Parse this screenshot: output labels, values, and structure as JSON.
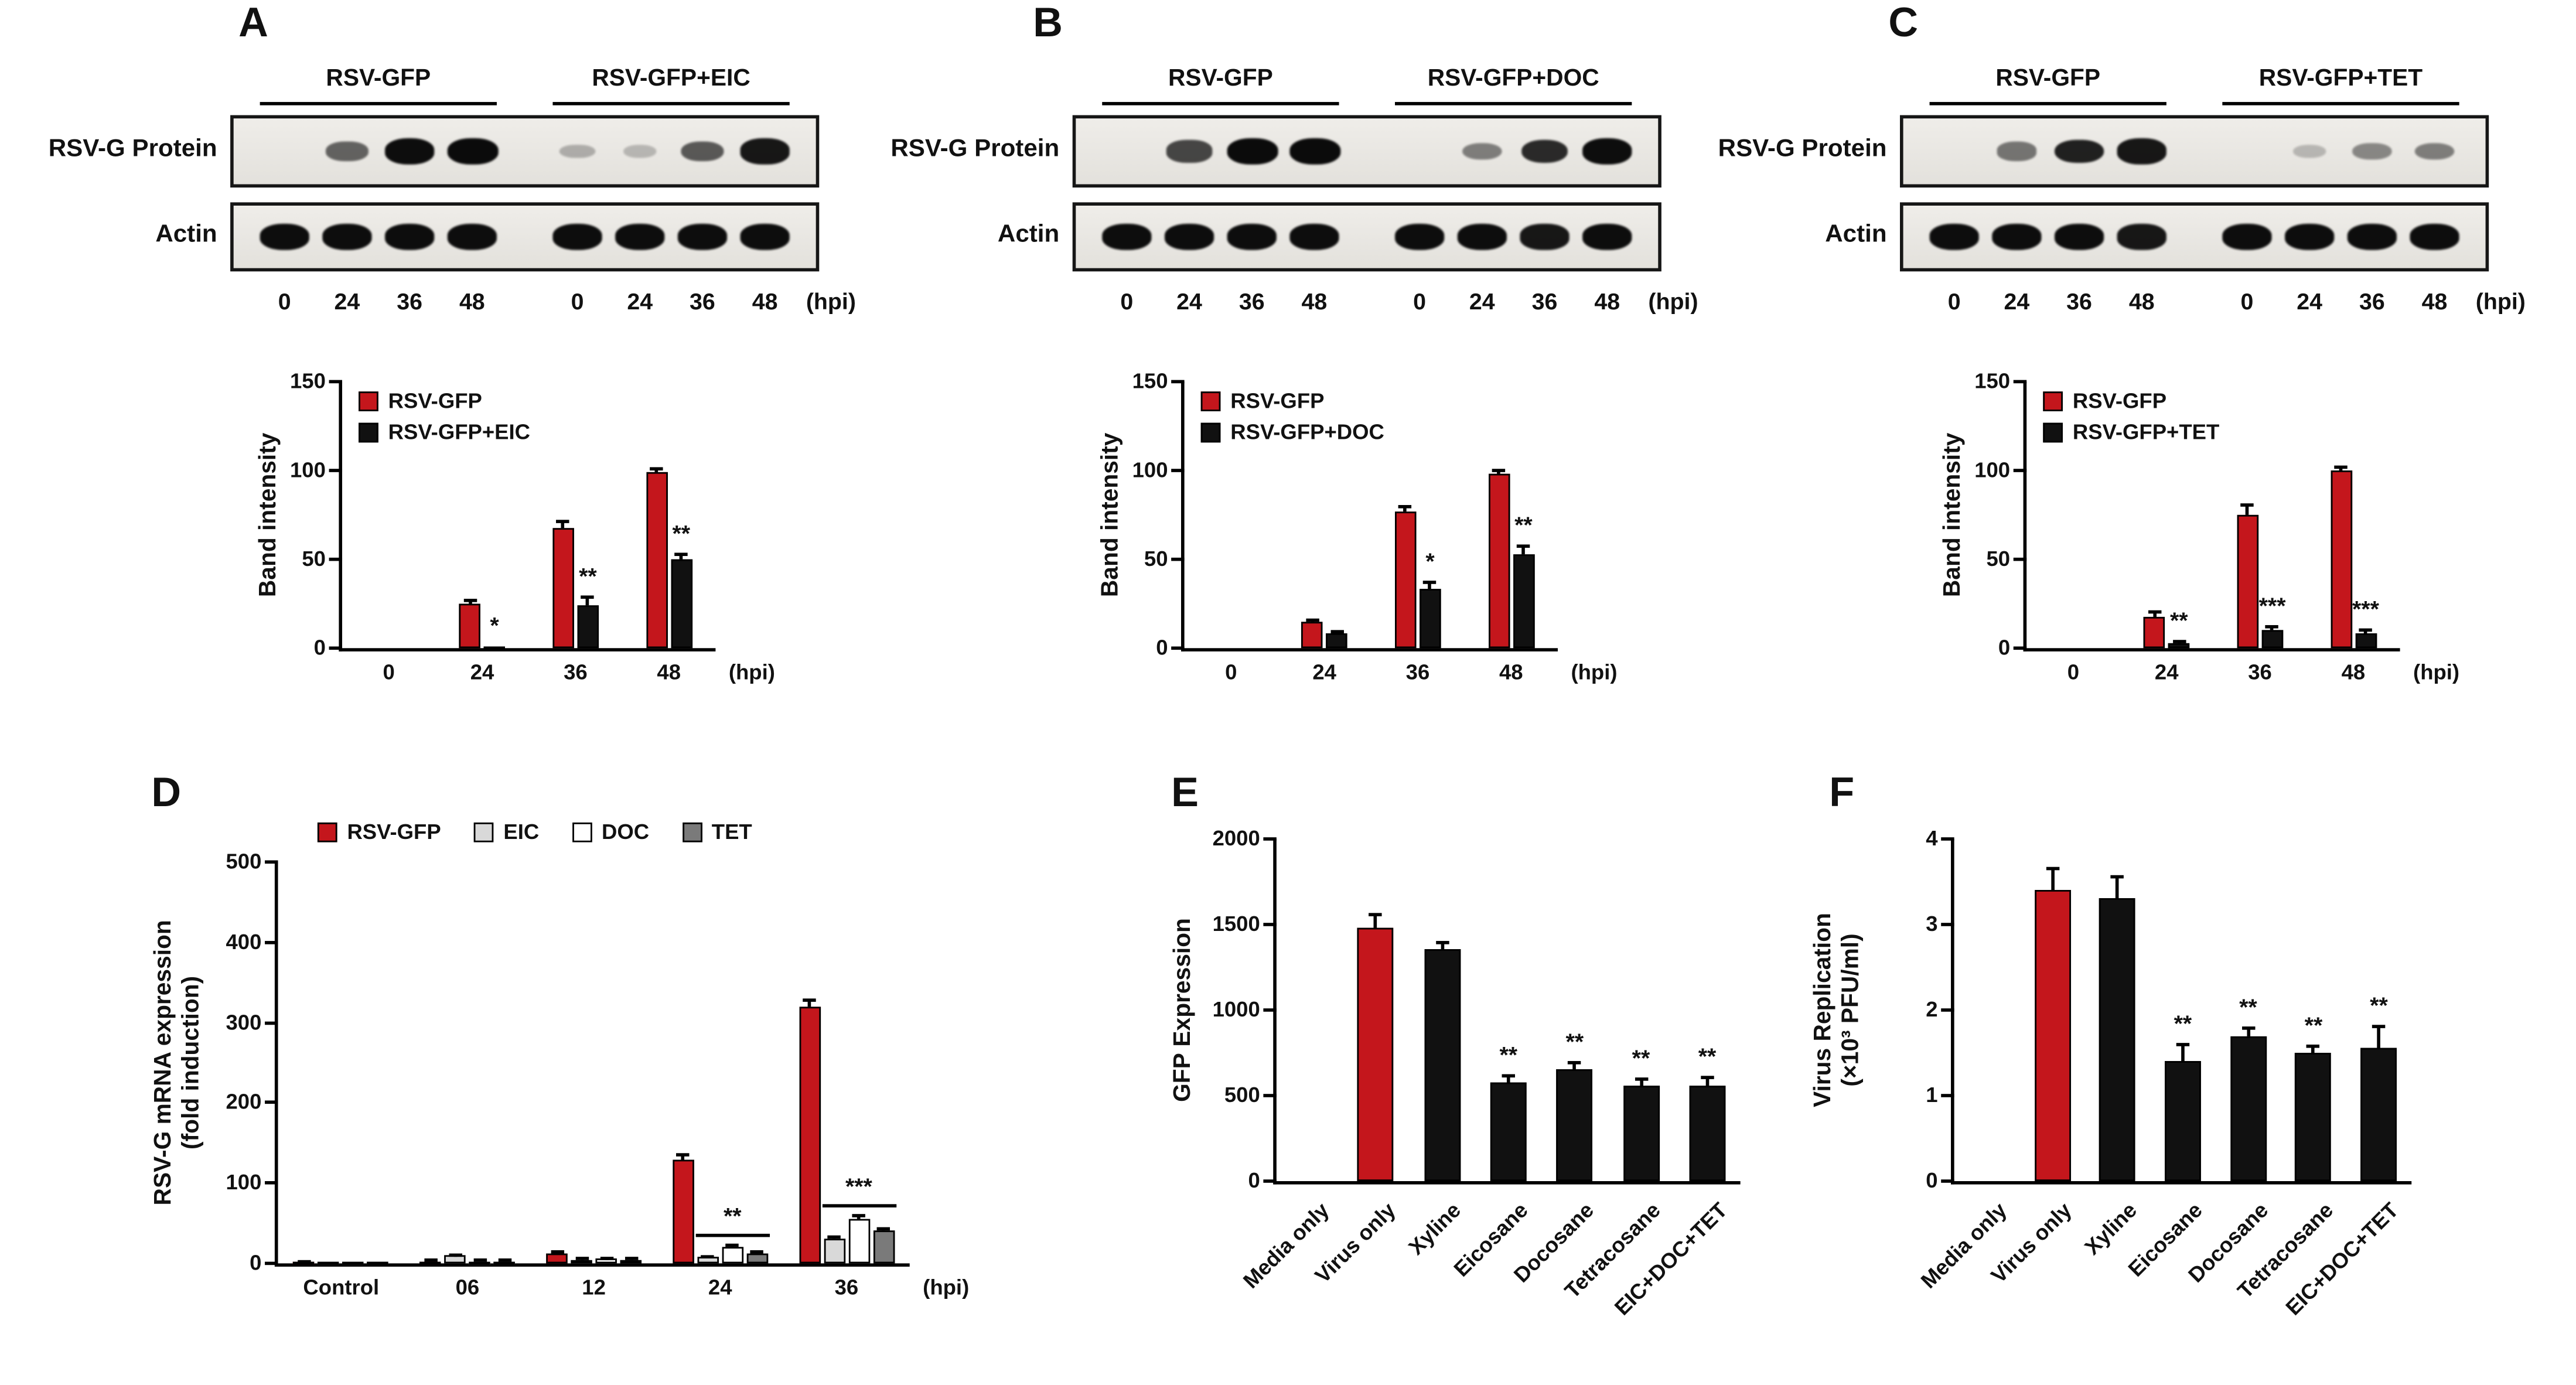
{
  "panels": {
    "a": {
      "letter": "A"
    },
    "b": {
      "letter": "B"
    },
    "c": {
      "letter": "C"
    },
    "d": {
      "letter": "D"
    },
    "e": {
      "letter": "E"
    },
    "f": {
      "letter": "F"
    }
  },
  "colors": {
    "red": "#c4161c",
    "black": "#111111",
    "eic_gray": "#d9d9d9",
    "doc_white": "#ffffff",
    "tet_gray": "#7a7a7a"
  },
  "blots": {
    "a": {
      "groups": [
        "RSV-GFP",
        "RSV-GFP+EIC"
      ],
      "rows": [
        {
          "label": "RSV-G Protein",
          "bands": [
            0,
            0.5,
            0.95,
            1.0,
            0.1,
            0.05,
            0.55,
            0.9
          ]
        },
        {
          "label": "Actin",
          "bands": [
            0.95,
            0.95,
            0.95,
            0.95,
            0.95,
            0.95,
            0.95,
            0.95
          ]
        }
      ],
      "lane_labels": [
        "0",
        "24",
        "36",
        "48",
        "0",
        "24",
        "36",
        "48"
      ],
      "suffix": "(hpi)"
    },
    "b": {
      "groups": [
        "RSV-GFP",
        "RSV-GFP+DOC"
      ],
      "rows": [
        {
          "label": "RSV-G Protein",
          "bands": [
            0,
            0.65,
            1.0,
            1.0,
            0,
            0.35,
            0.8,
            0.95
          ]
        },
        {
          "label": "Actin",
          "bands": [
            0.95,
            0.95,
            0.95,
            0.95,
            0.95,
            0.95,
            0.9,
            0.95
          ]
        }
      ],
      "lane_labels": [
        "0",
        "24",
        "36",
        "48",
        "0",
        "24",
        "36",
        "48"
      ],
      "suffix": "(hpi)"
    },
    "c": {
      "groups": [
        "RSV-GFP",
        "RSV-GFP+TET"
      ],
      "rows": [
        {
          "label": "RSV-G Protein",
          "bands": [
            0,
            0.4,
            0.85,
            0.9,
            0,
            0.05,
            0.3,
            0.35
          ]
        },
        {
          "label": "Actin",
          "bands": [
            0.95,
            0.95,
            0.95,
            0.9,
            0.95,
            0.95,
            0.95,
            0.95
          ]
        }
      ],
      "lane_labels": [
        "0",
        "24",
        "36",
        "48",
        "0",
        "24",
        "36",
        "48"
      ],
      "suffix": "(hpi)"
    }
  },
  "chart_data": [
    {
      "panel": "A",
      "type": "grouped-bar",
      "ylabel": "Band intensity",
      "ymax": 150,
      "yticks": [
        0,
        50,
        100,
        150
      ],
      "categories": [
        "0",
        "24",
        "36",
        "48"
      ],
      "x_suffix": "(hpi)",
      "legend": "column",
      "series": [
        {
          "name": "RSV-GFP",
          "color": "#c4161c",
          "values": [
            0,
            25,
            68,
            99
          ],
          "errors": [
            0,
            2,
            3,
            2
          ]
        },
        {
          "name": "RSV-GFP+EIC",
          "color": "#111111",
          "values": [
            0,
            1,
            24,
            50
          ],
          "errors": [
            0,
            0,
            5,
            3
          ]
        }
      ],
      "sig": [
        {
          "category": 1,
          "series": 1,
          "text": "*"
        },
        {
          "category": 2,
          "series": 1,
          "text": "**"
        },
        {
          "category": 3,
          "series": 1,
          "text": "**"
        }
      ]
    },
    {
      "panel": "B",
      "type": "grouped-bar",
      "ylabel": "Band intensity",
      "ymax": 150,
      "yticks": [
        0,
        50,
        100,
        150
      ],
      "categories": [
        "0",
        "24",
        "36",
        "48"
      ],
      "x_suffix": "(hpi)",
      "legend": "column",
      "series": [
        {
          "name": "RSV-GFP",
          "color": "#c4161c",
          "values": [
            0,
            15,
            77,
            98
          ],
          "errors": [
            0,
            1,
            3,
            2
          ]
        },
        {
          "name": "RSV-GFP+DOC",
          "color": "#111111",
          "values": [
            0,
            8,
            33,
            53
          ],
          "errors": [
            0,
            1,
            4,
            4
          ]
        }
      ],
      "sig": [
        {
          "category": 2,
          "series": 1,
          "text": "*"
        },
        {
          "category": 3,
          "series": 1,
          "text": "**"
        }
      ]
    },
    {
      "panel": "C",
      "type": "grouped-bar",
      "ylabel": "Band intensity",
      "ymax": 150,
      "yticks": [
        0,
        50,
        100,
        150
      ],
      "categories": [
        "0",
        "24",
        "36",
        "48"
      ],
      "x_suffix": "(hpi)",
      "legend": "column",
      "series": [
        {
          "name": "RSV-GFP",
          "color": "#c4161c",
          "values": [
            0,
            18,
            75,
            100
          ],
          "errors": [
            0,
            2,
            6,
            2
          ]
        },
        {
          "name": "RSV-GFP+TET",
          "color": "#111111",
          "values": [
            0,
            3,
            10,
            8
          ],
          "errors": [
            0,
            1,
            2,
            2
          ]
        }
      ],
      "sig": [
        {
          "category": 1,
          "series": 1,
          "text": "**"
        },
        {
          "category": 2,
          "series": 1,
          "text": "***"
        },
        {
          "category": 3,
          "series": 1,
          "text": "***"
        }
      ]
    },
    {
      "panel": "D",
      "type": "grouped-bar",
      "ylabel": "RSV-G mRNA expression\n(fold induction)",
      "ymax": 500,
      "yticks": [
        0,
        100,
        200,
        300,
        400,
        500
      ],
      "categories": [
        "Control",
        "06",
        "12",
        "24",
        "36"
      ],
      "x_suffix": "(hpi)",
      "legend": "row",
      "series": [
        {
          "name": "RSV-GFP",
          "color": "#c4161c",
          "values": [
            2,
            3,
            13,
            130,
            320
          ],
          "errors": [
            1,
            1,
            2,
            6,
            8
          ]
        },
        {
          "name": "EIC",
          "color": "#d9d9d9",
          "values": [
            2,
            10,
            5,
            8,
            30
          ],
          "errors": [
            0,
            1,
            1,
            1,
            3
          ]
        },
        {
          "name": "DOC",
          "color": "#ffffff",
          "values": [
            2,
            3,
            6,
            20,
            55
          ],
          "errors": [
            0,
            1,
            1,
            2,
            4
          ]
        },
        {
          "name": "TET",
          "color": "#7a7a7a",
          "values": [
            2,
            3,
            5,
            12,
            40
          ],
          "errors": [
            0,
            1,
            1,
            2,
            3
          ]
        }
      ],
      "sig": [
        {
          "category": 3,
          "text": "**",
          "bracket": [
            1,
            3
          ]
        },
        {
          "category": 4,
          "text": "***",
          "bracket": [
            1,
            3
          ]
        }
      ]
    },
    {
      "panel": "E",
      "type": "bar",
      "ylabel": "GFP Expression",
      "ymax": 2000,
      "yticks": [
        0,
        500,
        1000,
        1500,
        2000
      ],
      "categories": [
        "Media only",
        "Virus only",
        "Xyline",
        "Eicosane",
        "Docosane",
        "Tetracosane",
        "EIC+DOC+TET"
      ],
      "values": [
        0,
        1480,
        1360,
        580,
        650,
        560,
        560
      ],
      "errors": [
        0,
        80,
        30,
        35,
        45,
        35,
        45
      ],
      "colors": [
        "#111111",
        "#c4161c",
        "#111111",
        "#111111",
        "#111111",
        "#111111",
        "#111111"
      ],
      "rotate_x": true,
      "sig": [
        {
          "category": 3,
          "text": "**"
        },
        {
          "category": 4,
          "text": "**"
        },
        {
          "category": 5,
          "text": "**"
        },
        {
          "category": 6,
          "text": "**"
        }
      ]
    },
    {
      "panel": "F",
      "type": "bar",
      "ylabel": "Virus Replication\n(×10³ PFU/ml)",
      "ymax": 4,
      "yticks": [
        0,
        1,
        2,
        3,
        4
      ],
      "categories": [
        "Media only",
        "Virus only",
        "Xyline",
        "Eicosane",
        "Docosane",
        "Tetracosane",
        "EIC+DOC+TET"
      ],
      "values": [
        0,
        3.4,
        3.3,
        1.4,
        1.7,
        1.5,
        1.55
      ],
      "errors": [
        0,
        0.25,
        0.25,
        0.2,
        0.08,
        0.08,
        0.25
      ],
      "colors": [
        "#111111",
        "#c4161c",
        "#111111",
        "#111111",
        "#111111",
        "#111111",
        "#111111"
      ],
      "rotate_x": true,
      "sig": [
        {
          "category": 3,
          "text": "**"
        },
        {
          "category": 4,
          "text": "**"
        },
        {
          "category": 5,
          "text": "**"
        },
        {
          "category": 6,
          "text": "**"
        }
      ]
    }
  ]
}
